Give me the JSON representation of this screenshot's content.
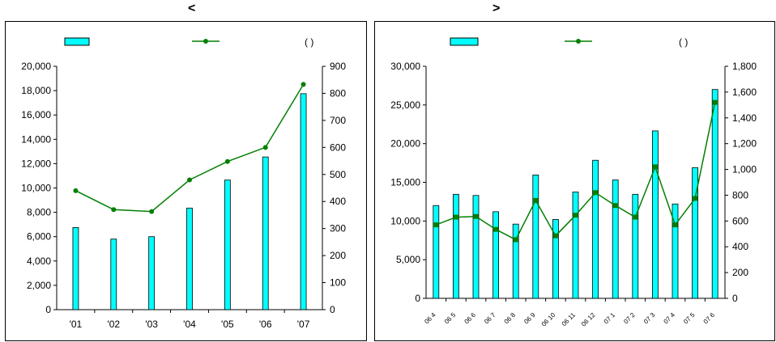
{
  "headings": {
    "left": "<",
    "right": ">"
  },
  "colors": {
    "bar_fill": "#00ffff",
    "bar_stroke": "#000000",
    "line": "#008000",
    "marker": "#008000"
  },
  "legend_paren": "(     )",
  "chart_data": [
    {
      "type": "bar",
      "combo": "bar + line (dual axis)",
      "categories": [
        "'01",
        "'02",
        "'03",
        "'04",
        "'05",
        "'06",
        "'07"
      ],
      "series": [
        {
          "values": [
            6750,
            5800,
            6000,
            8350,
            10650,
            12550,
            17750
          ]
        },
        {
          "type": "line",
          "axis": "right",
          "values": [
            440,
            370,
            363,
            480,
            548,
            600,
            833
          ]
        }
      ],
      "ylim": [
        0,
        20000
      ],
      "yticks": [
        "0",
        "2,000",
        "4,000",
        "6,000",
        "8,000",
        "10,000",
        "12,000",
        "14,000",
        "16,000",
        "18,000",
        "20,000"
      ],
      "y2lim": [
        0,
        900
      ],
      "y2ticks": [
        "0",
        "100",
        "200",
        "300",
        "400",
        "500",
        "600",
        "700",
        "800",
        "900"
      ],
      "legend": "top",
      "grid": false
    },
    {
      "type": "bar",
      "combo": "bar + line (dual axis)",
      "categories": [
        "06 4",
        "06 5",
        "06 6",
        "06 7",
        "06 8",
        "06 9",
        "06 10",
        "06 11",
        "06 12",
        "07 1",
        "07 2",
        "07 3",
        "07 4",
        "07 5",
        "07 6"
      ],
      "series": [
        {
          "values": [
            12000,
            13450,
            13300,
            11200,
            9600,
            15950,
            10200,
            13750,
            17850,
            15300,
            13450,
            21650,
            12200,
            16900,
            27000
          ]
        },
        {
          "type": "line",
          "axis": "right",
          "values": [
            570,
            630,
            635,
            535,
            455,
            760,
            485,
            645,
            820,
            720,
            630,
            1020,
            570,
            775,
            1520
          ]
        }
      ],
      "ylim": [
        0,
        30000
      ],
      "yticks": [
        "0",
        "5,000",
        "10,000",
        "15,000",
        "20,000",
        "25,000",
        "30,000"
      ],
      "y2lim": [
        0,
        1800
      ],
      "y2ticks": [
        "0",
        "200",
        "400",
        "600",
        "800",
        "1,000",
        "1,200",
        "1,400",
        "1,600",
        "1,800"
      ],
      "legend": "top",
      "grid": false
    }
  ]
}
